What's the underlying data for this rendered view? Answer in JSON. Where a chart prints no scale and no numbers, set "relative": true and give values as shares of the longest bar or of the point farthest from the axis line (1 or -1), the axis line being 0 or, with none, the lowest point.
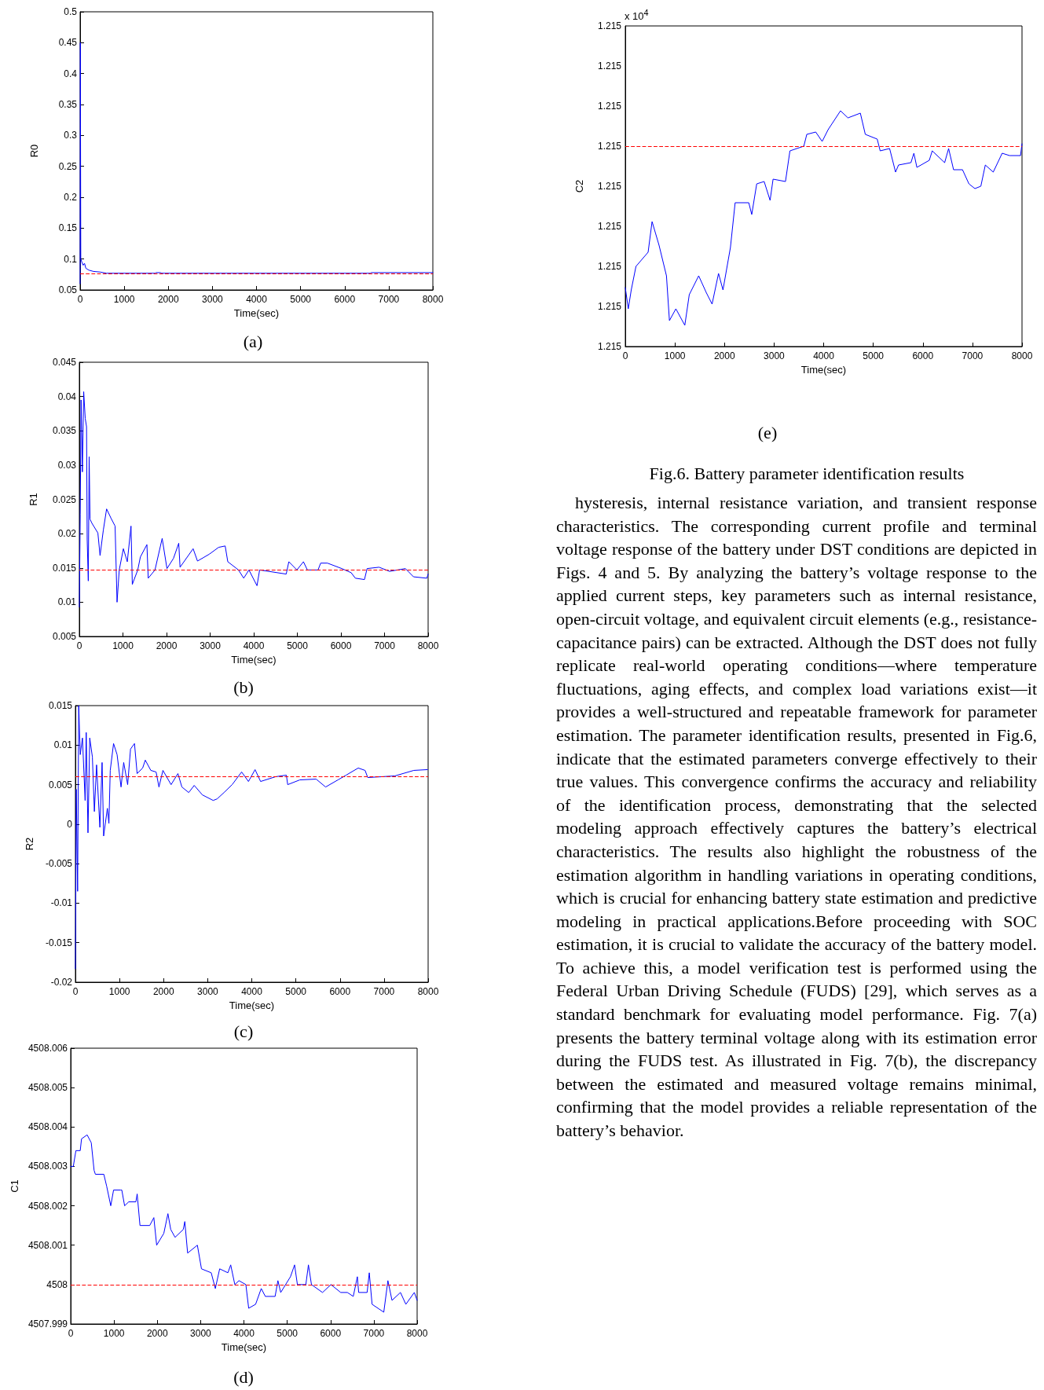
{
  "chart_data": [
    {
      "type": "line",
      "xlabel": "Time(sec)",
      "ylabel": "R0",
      "annotations": [
        "(a)"
      ],
      "xlim": [
        0,
        8000
      ],
      "xticks": [
        0,
        1000,
        2000,
        3000,
        4000,
        5000,
        6000,
        7000,
        8000
      ],
      "ylim": [
        0.05,
        0.5
      ],
      "yticks": [
        0.05,
        0.1,
        0.15,
        0.2,
        0.25,
        0.3,
        0.35,
        0.4,
        0.45,
        0.5
      ],
      "grid": false,
      "marker": "none",
      "line_style": "solid",
      "x": [
        0,
        5,
        15,
        40,
        70,
        100,
        130,
        200,
        300,
        450,
        600,
        1700,
        1720,
        1820,
        1850,
        6580,
        6600,
        8000
      ],
      "series": [
        {
          "color": "#0000ff",
          "values": [
            0.06,
            0.45,
            0.1,
            0.095,
            0.09,
            0.093,
            0.085,
            0.082,
            0.08,
            0.079,
            0.077,
            0.077,
            0.078,
            0.078,
            0.077,
            0.077,
            0.078,
            0.078
          ]
        }
      ],
      "ref_lines": [
        {
          "axis": "y",
          "value": 0.076,
          "color": "#ff0000",
          "line_style": "dashed"
        }
      ]
    },
    {
      "type": "line",
      "xlabel": "Time(sec)",
      "ylabel": "R1",
      "annotations": [
        "(b)"
      ],
      "xlim": [
        0,
        8000
      ],
      "xticks": [
        0,
        1000,
        2000,
        3000,
        4000,
        5000,
        6000,
        7000,
        8000
      ],
      "ylim": [
        0.005,
        0.045
      ],
      "yticks": [
        0.005,
        0.01,
        0.015,
        0.02,
        0.025,
        0.03,
        0.035,
        0.04,
        0.045
      ],
      "grid": false,
      "marker": "none",
      "line_style": "solid",
      "x": [
        0,
        20,
        40,
        70,
        100,
        135,
        165,
        180,
        205,
        225,
        245,
        290,
        425,
        475,
        550,
        625,
        730,
        820,
        865,
        915,
        1010,
        1100,
        1185,
        1215,
        1340,
        1400,
        1550,
        1580,
        1735,
        1900,
        2010,
        2160,
        2280,
        2310,
        2610,
        2710,
        2980,
        3195,
        3345,
        3405,
        3650,
        3770,
        3890,
        4075,
        4135,
        4745,
        4805,
        4990,
        5140,
        5230,
        5475,
        5535,
        5690,
        6020,
        6235,
        6330,
        6540,
        6600,
        6875,
        7115,
        7480,
        7665,
        7970,
        8000
      ],
      "series": [
        {
          "color": "#0000ff",
          "values": [
            0.0093,
            0.0228,
            0.0395,
            0.029,
            0.0407,
            0.0368,
            0.0356,
            0.0191,
            0.0131,
            0.0312,
            0.0221,
            0.0215,
            0.0201,
            0.0168,
            0.0205,
            0.0236,
            0.0222,
            0.0211,
            0.01,
            0.0147,
            0.0178,
            0.0159,
            0.0211,
            0.0126,
            0.0147,
            0.0166,
            0.0184,
            0.0135,
            0.0147,
            0.0193,
            0.0149,
            0.0164,
            0.0186,
            0.0151,
            0.0178,
            0.016,
            0.017,
            0.018,
            0.0182,
            0.0159,
            0.0147,
            0.0135,
            0.0147,
            0.0124,
            0.0147,
            0.0141,
            0.0159,
            0.0147,
            0.0159,
            0.0147,
            0.0147,
            0.0157,
            0.0157,
            0.0149,
            0.0143,
            0.0135,
            0.0133,
            0.0149,
            0.0151,
            0.0145,
            0.0149,
            0.0137,
            0.0135,
            0.0141
          ]
        }
      ],
      "ref_lines": [
        {
          "axis": "y",
          "value": 0.0147,
          "color": "#ff0000",
          "line_style": "dashed"
        }
      ]
    },
    {
      "type": "line",
      "xlabel": "Time(sec)",
      "ylabel": "R2",
      "annotations": [
        "(c)"
      ],
      "xlim": [
        0,
        8000
      ],
      "xticks": [
        0,
        1000,
        2000,
        3000,
        4000,
        5000,
        6000,
        7000,
        8000
      ],
      "ylim": [
        -0.02,
        0.015
      ],
      "yticks": [
        -0.02,
        -0.015,
        -0.01,
        -0.005,
        0,
        0.005,
        0.01,
        0.015
      ],
      "grid": false,
      "marker": "none",
      "line_style": "solid",
      "x": [
        0,
        20,
        50,
        75,
        110,
        160,
        220,
        245,
        285,
        325,
        385,
        430,
        480,
        555,
        605,
        640,
        725,
        760,
        790,
        865,
        945,
        1035,
        1095,
        1185,
        1250,
        1340,
        1400,
        1525,
        1585,
        1710,
        1830,
        1895,
        1985,
        2170,
        2325,
        2415,
        2570,
        2695,
        2880,
        3125,
        3215,
        3370,
        3555,
        3770,
        3925,
        4075,
        4200,
        4540,
        4785,
        4815,
        5090,
        5460,
        5675,
        5955,
        6140,
        6415,
        6570,
        6630,
        7245,
        7675,
        7985
      ],
      "series": [
        {
          "color": "#0000ff",
          "values": [
            -0.0183,
            0.0044,
            -0.0085,
            0.015,
            0.0088,
            0.0109,
            0.003,
            0.0116,
            -0.0011,
            0.0109,
            0.0085,
            0.0016,
            0.0075,
            -0.0004,
            0.0078,
            -0.0015,
            0.002,
            0.0001,
            0.0068,
            0.0102,
            0.0088,
            0.0047,
            0.0078,
            0.005,
            0.0095,
            0.0102,
            0.0064,
            0.0071,
            0.0081,
            0.0068,
            0.0066,
            0.0047,
            0.0068,
            0.005,
            0.0064,
            0.0047,
            0.004,
            0.0049,
            0.0037,
            0.003,
            0.0032,
            0.004,
            0.005,
            0.0066,
            0.0054,
            0.0069,
            0.0054,
            0.006,
            0.0062,
            0.005,
            0.0056,
            0.0057,
            0.0047,
            0.0056,
            0.0062,
            0.0071,
            0.0068,
            0.0059,
            0.0061,
            0.0068,
            0.0069
          ]
        }
      ],
      "ref_lines": [
        {
          "axis": "y",
          "value": 0.006,
          "color": "#ff0000",
          "line_style": "dashed"
        }
      ]
    },
    {
      "type": "line",
      "xlabel": "Time(sec)",
      "ylabel": "C1",
      "annotations": [
        "(d)"
      ],
      "xlim": [
        0,
        8000
      ],
      "xticks": [
        0,
        1000,
        2000,
        3000,
        4000,
        5000,
        6000,
        7000,
        8000
      ],
      "ylim": [
        4507.999,
        4508.006
      ],
      "yticks": [
        4507.999,
        4508,
        4508.001,
        4508.002,
        4508.003,
        4508.004,
        4508.005,
        4508.006
      ],
      "grid": false,
      "marker": "none",
      "line_style": "solid",
      "x": [
        0,
        60,
        120,
        220,
        250,
        380,
        475,
        540,
        570,
        765,
        830,
        925,
        990,
        1150,
        1180,
        1245,
        1340,
        1505,
        1535,
        1600,
        1825,
        1920,
        1985,
        2150,
        2245,
        2310,
        2410,
        2600,
        2635,
        2700,
        2925,
        3020,
        3245,
        3340,
        3440,
        3630,
        3695,
        3790,
        3885,
        4045,
        4110,
        4270,
        4400,
        4495,
        4720,
        4785,
        4850,
        5075,
        5170,
        5235,
        5430,
        5490,
        5560,
        5815,
        6010,
        6235,
        6390,
        6525,
        6620,
        6650,
        6845,
        6895,
        6960,
        7230,
        7325,
        7420,
        7615,
        7740,
        7935,
        8000
      ],
      "series": [
        {
          "color": "#0000ff",
          "values": [
            4508.003,
            4508.003,
            4508.0034,
            4508.0034,
            4508.0037,
            4508.0038,
            4508.0036,
            4508.0029,
            4508.0028,
            4508.0028,
            4508.0025,
            4508.002,
            4508.0024,
            4508.0024,
            4508.0024,
            4508.002,
            4508.0021,
            4508.0021,
            4508.0023,
            4508.0015,
            4508.0015,
            4508.0017,
            4508.001,
            4508.0013,
            4508.0018,
            4508.0014,
            4508.0012,
            4508.0014,
            4508.0016,
            4508.0008,
            4508.001,
            4508.0004,
            4508.0003,
            4507.9999,
            4508.0004,
            4508.0003,
            4508.0005,
            4508,
            4508.0001,
            4508,
            4507.9994,
            4507.9995,
            4507.9999,
            4507.9997,
            4507.9997,
            4508.0001,
            4507.9998,
            4508.0002,
            4508.0005,
            4508,
            4508,
            4508.0005,
            4508,
            4507.9998,
            4508,
            4507.9998,
            4507.9998,
            4507.9997,
            4508.0002,
            4507.9998,
            4507.9998,
            4508.0003,
            4507.9995,
            4507.9993,
            4508.0001,
            4507.9996,
            4507.9998,
            4507.9995,
            4507.9998,
            4507.9996
          ]
        }
      ],
      "ref_lines": [
        {
          "axis": "y",
          "value": 4508,
          "color": "#ff0000",
          "line_style": "dashed"
        }
      ]
    },
    {
      "type": "line",
      "xlabel": "Time(sec)",
      "ylabel": "C2",
      "relative": true,
      "annotations": [
        "x 10$^{4}$",
        "1.215",
        "1.215",
        "1.215",
        "1.215",
        "1.215",
        "1.215",
        "1.215",
        "1.215",
        "1.215",
        "(e)",
        "Fig.6. Battery parameter identification results",
        "hysteresis, internal resistance variation, and transient response characteristics. The corresponding current profile and terminal voltage response of the battery under DST conditions are depicted in Figs. 4 and 5. By analyzing the battery’s voltage response to the applied current steps, key parameters such as internal resistance, open-circuit voltage, and equivalent circuit elements (e.g., resistance-capacitance pairs) can be extracted. Although the DST does not fully replicate real-world operating conditions—where temperature fluctuations, aging effects, and complex load variations exist—it provides a well-structured and repeatable framework for parameter estimation. The parameter identification results, presented in Fig.6, indicate that the estimated parameters converge effectively to their true values. This convergence confirms the accuracy and reliability of the identification process, demonstrating that the selected modeling approach effectively captures the battery’s electrical characteristics. The results also highlight the robustness of the estimation algorithm in handling variations in operating conditions, which is crucial for enhancing battery state estimation and predictive modeling in practical applications.Before proceeding with SOC estimation, it is crucial to validate the accuracy of the battery model. To achieve this, a model verification test is performed using the Federal Urban Driving Schedule (FUDS) [29], which serves as a standard benchmark for evaluating model performance. Fig. 7(a) presents the battery terminal voltage along with its estimation error during the FUDS test. As illustrated in Fig. 7(b), the discrepancy between the estimated and measured voltage remains minimal, confirming that the model provides a reliable representation of the battery’s behavior."
      ],
      "xlim": [
        0,
        8000
      ],
      "xticks": [
        0,
        1000,
        2000,
        3000,
        4000,
        5000,
        6000,
        7000,
        8000
      ],
      "grid": false,
      "marker": "none",
      "line_style": "solid",
      "x": [
        0,
        60,
        120,
        215,
        460,
        540,
        680,
        830,
        890,
        1020,
        1200,
        1290,
        1480,
        1630,
        1750,
        1880,
        1970,
        2120,
        2215,
        2490,
        2550,
        2650,
        2800,
        2920,
        2980,
        3230,
        3320,
        3600,
        3660,
        3840,
        3970,
        4090,
        4340,
        4490,
        4740,
        4840,
        5080,
        5140,
        5330,
        5450,
        5510,
        5760,
        5820,
        5880,
        6130,
        6190,
        6440,
        6520,
        6620,
        6800,
        6930,
        7050,
        7170,
        7260,
        7420,
        7600,
        7750,
        7970,
        8000
      ],
      "series": [
        {
          "color": "#0000ff",
          "values": [
            0.25,
            0.16,
            0.24,
            0.34,
            0.4,
            0.53,
            0.43,
            0.3,
            0.11,
            0.16,
            0.09,
            0.22,
            0.3,
            0.23,
            0.18,
            0.31,
            0.24,
            0.42,
            0.61,
            0.61,
            0.56,
            0.69,
            0.7,
            0.62,
            0.71,
            0.7,
            0.83,
            0.85,
            0.9,
            0.91,
            0.87,
            0.92,
            1,
            0.97,
            0.99,
            0.9,
            0.88,
            0.83,
            0.84,
            0.74,
            0.77,
            0.78,
            0.82,
            0.76,
            0.79,
            0.83,
            0.78,
            0.84,
            0.75,
            0.75,
            0.69,
            0.67,
            0.68,
            0.77,
            0.74,
            0.82,
            0.81,
            0.81,
            0.86
          ]
        }
      ],
      "ref_lines": [
        {
          "axis": "y",
          "value": 0.85,
          "color": "#ff0000",
          "line_style": "dashed"
        }
      ]
    }
  ]
}
